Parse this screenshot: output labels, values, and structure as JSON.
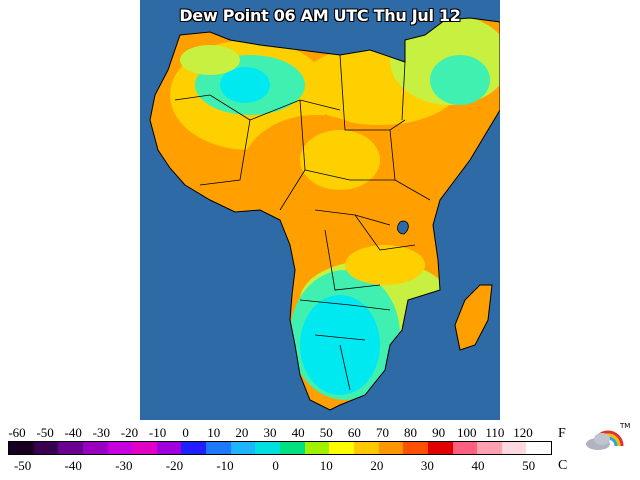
{
  "title": "Dew Point 06 AM UTC Thu Jul 12",
  "legend": {
    "fahrenheit_unit": "F",
    "celsius_unit": "C",
    "fahrenheit_ticks": [
      "-60",
      "-50",
      "-40",
      "-30",
      "-20",
      "-10",
      "0",
      "10",
      "20",
      "30",
      "40",
      "50",
      "60",
      "70",
      "80",
      "90",
      "100",
      "110",
      "120"
    ],
    "celsius_ticks": [
      "-50",
      "-40",
      "-30",
      "-20",
      "-10",
      "0",
      "10",
      "20",
      "30",
      "40",
      "50"
    ],
    "fahrenheit_tick_values": [
      -60,
      -50,
      -40,
      -30,
      -20,
      -10,
      0,
      10,
      20,
      30,
      40,
      50,
      60,
      70,
      80,
      90,
      100,
      110,
      120
    ],
    "celsius_tick_values": [
      -50,
      -40,
      -30,
      -20,
      -10,
      0,
      10,
      20,
      30,
      40,
      50
    ],
    "colors": [
      "#1a0020",
      "#3a0050",
      "#6a0090",
      "#9a00c0",
      "#c800e0",
      "#e000c8",
      "#a000e0",
      "#2020ff",
      "#1e78ff",
      "#1eb4ff",
      "#00e0e0",
      "#00e080",
      "#a0f000",
      "#ffff00",
      "#ffc800",
      "#ff9600",
      "#ff5000",
      "#e00000",
      "#ff6080",
      "#ffa0b0",
      "#ffd8e0",
      "#ffffff"
    ]
  },
  "map_colors": {
    "ocean": "#2d6aa6",
    "border": "#000000",
    "very_dry": "#00e8f0",
    "dry": "#40f0b0",
    "mid": "#c8f040",
    "moist": "#ffd000",
    "humid": "#ffa000",
    "very_humid": "#ff8c00"
  },
  "logo_icon": "cloud-rainbow-logo"
}
